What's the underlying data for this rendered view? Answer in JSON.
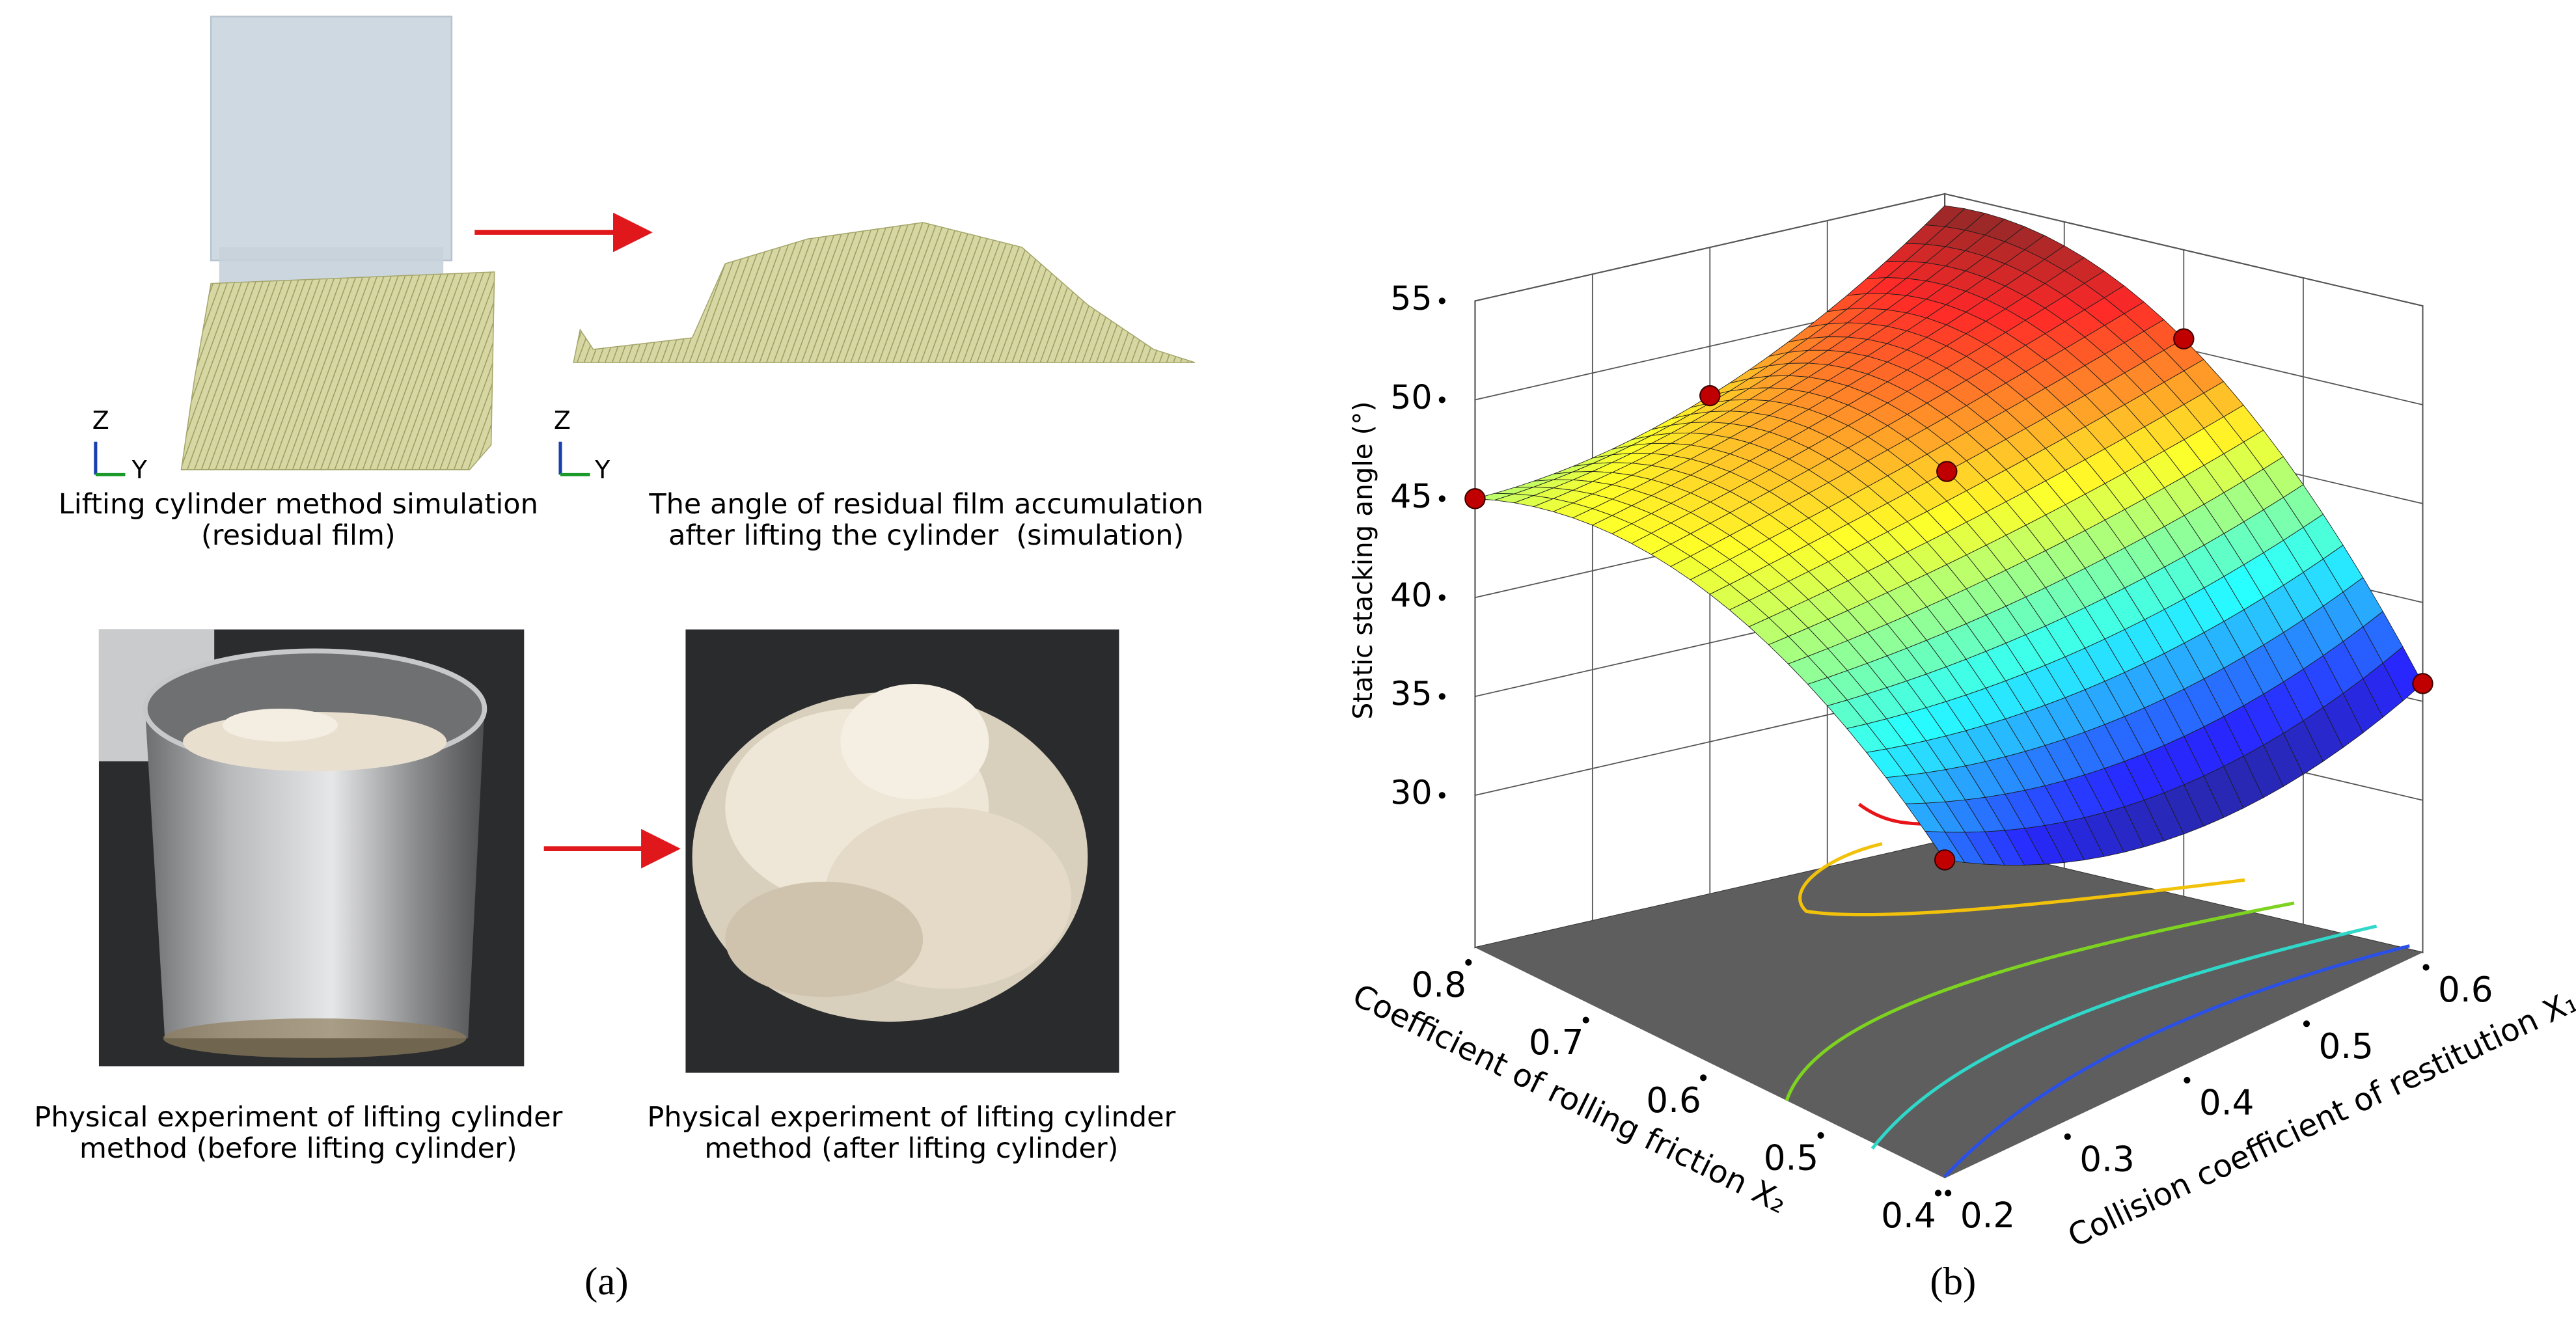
{
  "panel_a": {
    "label": "(a)",
    "simulation_before": {
      "caption": [
        "Lifting cylinder method simulation",
        "(residual film)"
      ],
      "axes": [
        "Z",
        "Y"
      ]
    },
    "simulation_after": {
      "caption": [
        "The angle of residual film accumulation",
        "after lifting the cylinder  (simulation)"
      ],
      "axes": [
        "Z",
        "Y"
      ]
    },
    "photo_before": {
      "caption": [
        "Physical experiment of lifting cylinder",
        "method (before lifting cylinder)"
      ]
    },
    "photo_after": {
      "caption": [
        "Physical experiment of lifting cylinder",
        "method (after lifting cylinder)"
      ]
    }
  },
  "chart_data": {
    "type": "surface",
    "label": "(b)",
    "zlabel": "Static stacking angle (°)",
    "xlabel": "Collision coefficient of restitution X₁",
    "ylabel": "Coefficient of rolling friction X₂",
    "xlim": [
      0.2,
      0.6
    ],
    "xticks": [
      0.2,
      0.3,
      0.4,
      0.5,
      0.6
    ],
    "ylim": [
      0.4,
      0.8
    ],
    "yticks": [
      0.4,
      0.5,
      0.6,
      0.7,
      0.8
    ],
    "zlim": [
      22.3,
      55
    ],
    "zticks": [
      30,
      35,
      40,
      45,
      50,
      55
    ],
    "grid": true,
    "surface": {
      "x1": [
        0.2,
        0.4,
        0.6
      ],
      "x2": [
        0.4,
        0.6,
        0.8
      ],
      "z": [
        [
          38.4,
          34,
          35.9
        ],
        [
          46,
          48,
          50.5
        ],
        [
          45,
          47.5,
          54.4
        ]
      ]
    },
    "points": {
      "color": "#c00000",
      "x1": [
        0.2,
        0.4,
        0.6,
        0.4,
        0.2,
        0.6
      ],
      "x2": [
        0.8,
        0.8,
        0.6,
        0.6,
        0.4,
        0.4
      ],
      "z": [
        45,
        47.5,
        50.5,
        48,
        38.4,
        35.9
      ]
    }
  }
}
